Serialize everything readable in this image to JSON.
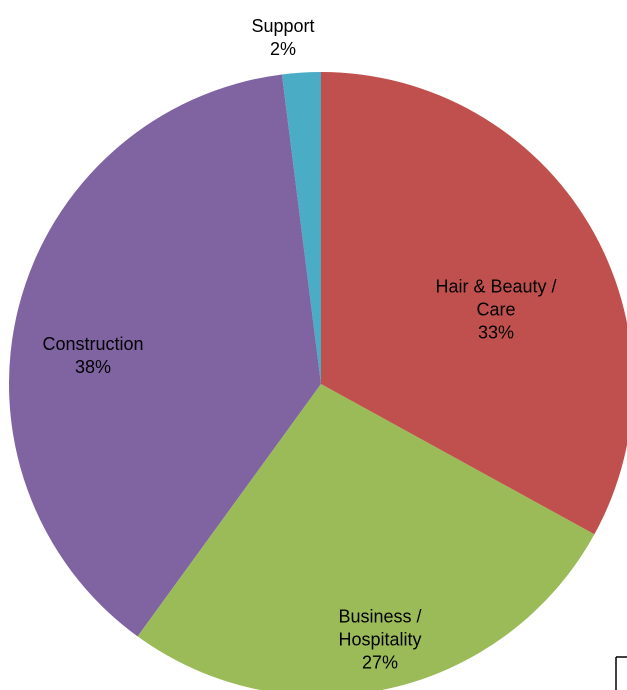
{
  "chart_data": {
    "type": "pie",
    "categories": [
      "Hair & Beauty / Care",
      "Business / Hospitality",
      "Construction",
      "Support"
    ],
    "values": [
      33,
      27,
      38,
      2
    ],
    "value_labels": [
      "33%",
      "27%",
      "38%",
      "2%"
    ],
    "colors": [
      "#c0504d",
      "#9bbb59",
      "#8064a2",
      "#4bacc6"
    ]
  }
}
